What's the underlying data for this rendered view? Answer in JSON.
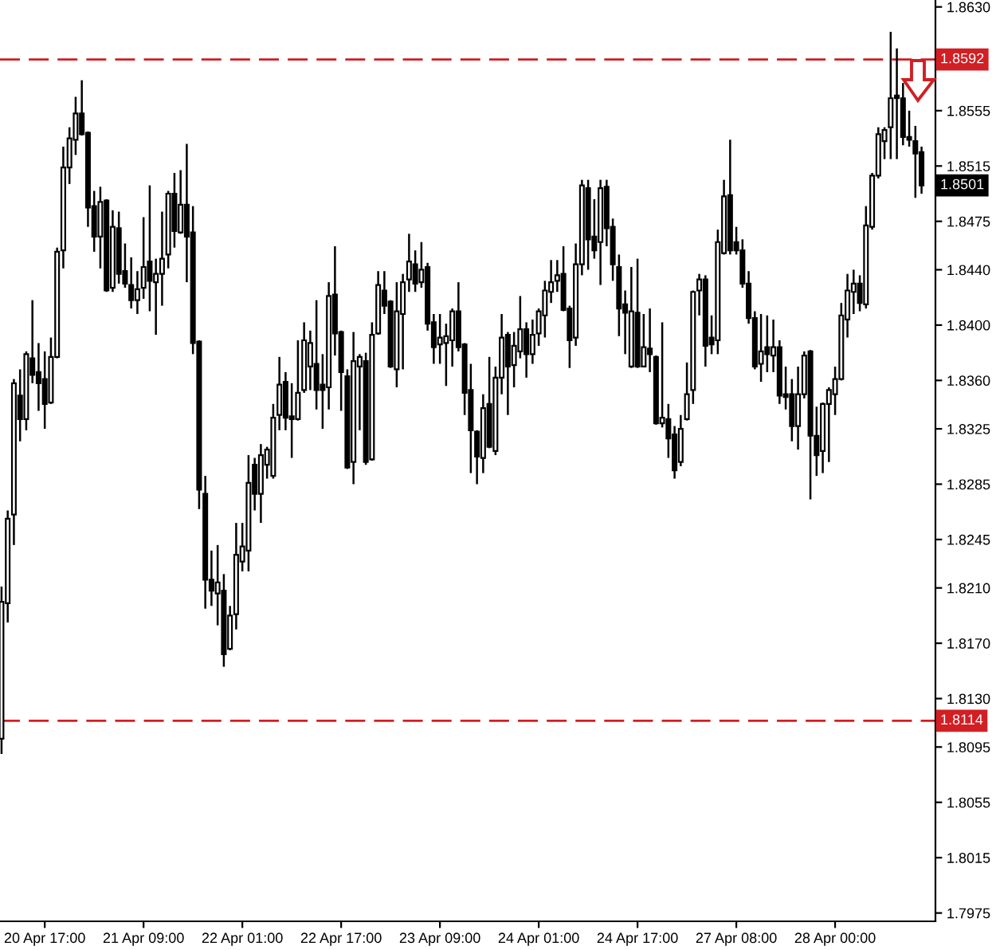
{
  "chart_data": {
    "type": "candlestick",
    "color": "#000000",
    "categories": [
      null,
      null,
      null,
      null,
      null,
      null,
      null,
      "20 Apr 17:00",
      null,
      null,
      null,
      null,
      null,
      null,
      null,
      null,
      null,
      null,
      null,
      null,
      null,
      null,
      null,
      "21 Apr 09:00",
      null,
      null,
      null,
      null,
      null,
      null,
      null,
      null,
      null,
      null,
      null,
      null,
      null,
      null,
      null,
      "22 Apr 01:00",
      null,
      null,
      null,
      null,
      null,
      null,
      null,
      null,
      null,
      null,
      null,
      null,
      null,
      null,
      null,
      "22 Apr 17:00",
      null,
      null,
      null,
      null,
      null,
      null,
      null,
      null,
      null,
      null,
      null,
      null,
      null,
      null,
      null,
      "23 Apr 09:00",
      null,
      null,
      null,
      null,
      null,
      null,
      null,
      null,
      null,
      null,
      null,
      null,
      null,
      null,
      null,
      "24 Apr 01:00",
      null,
      null,
      null,
      null,
      null,
      null,
      null,
      null,
      null,
      null,
      null,
      null,
      null,
      null,
      null,
      "24 Apr 17:00",
      null,
      null,
      null,
      null,
      null,
      null,
      null,
      null,
      null,
      null,
      null,
      null,
      null,
      null,
      null,
      "27 Apr 08:00",
      null,
      null,
      null,
      null,
      null,
      null,
      null,
      null,
      null,
      null,
      null,
      null,
      null,
      null,
      null,
      "28 Apr 00:00",
      null,
      null,
      null,
      null,
      null,
      null,
      null,
      null,
      null,
      null,
      null,
      null,
      null,
      null
    ],
    "ohlc": [
      [
        1.8101,
        1.8211,
        1.809,
        1.82
      ],
      [
        1.8199,
        1.8266,
        1.8185,
        1.826
      ],
      [
        1.8263,
        1.8361,
        1.8241,
        1.8358
      ],
      [
        1.8349,
        1.8368,
        1.8316,
        1.8332
      ],
      [
        1.8332,
        1.8381,
        1.8324,
        1.8379
      ],
      [
        1.8376,
        1.8418,
        1.8358,
        1.8364
      ],
      [
        1.8366,
        1.8387,
        1.8338,
        1.8358
      ],
      [
        1.8361,
        1.8381,
        1.8325,
        1.8343
      ],
      [
        1.8344,
        1.8391,
        1.8343,
        1.8377
      ],
      [
        1.8377,
        1.8456,
        1.8376,
        1.8453
      ],
      [
        1.8454,
        1.8529,
        1.8441,
        1.8514
      ],
      [
        1.8514,
        1.8543,
        1.8502,
        1.8535
      ],
      [
        1.8534,
        1.8565,
        1.8523,
        1.8553
      ],
      [
        1.8553,
        1.8577,
        1.8537,
        1.8538
      ],
      [
        1.8539,
        1.854,
        1.8471,
        1.8485
      ],
      [
        1.8486,
        1.8497,
        1.8453,
        1.8464
      ],
      [
        1.8464,
        1.85,
        1.8441,
        1.8489
      ],
      [
        1.849,
        1.8491,
        1.8424,
        1.8425
      ],
      [
        1.8427,
        1.8483,
        1.8424,
        1.8471
      ],
      [
        1.847,
        1.8482,
        1.843,
        1.8437
      ],
      [
        1.8439,
        1.8459,
        1.8427,
        1.843
      ],
      [
        1.8429,
        1.8449,
        1.8412,
        1.8418
      ],
      [
        1.8418,
        1.8439,
        1.8408,
        1.8426
      ],
      [
        1.8427,
        1.8478,
        1.8419,
        1.8442
      ],
      [
        1.8446,
        1.8501,
        1.841,
        1.8432
      ],
      [
        1.8431,
        1.8448,
        1.8393,
        1.8437
      ],
      [
        1.8437,
        1.8482,
        1.8414,
        1.8448
      ],
      [
        1.8451,
        1.8497,
        1.8441,
        1.8495
      ],
      [
        1.8495,
        1.851,
        1.8456,
        1.8468
      ],
      [
        1.8467,
        1.8512,
        1.8466,
        1.8487
      ],
      [
        1.8487,
        1.8531,
        1.8431,
        1.8464
      ],
      [
        1.8467,
        1.8486,
        1.8379,
        1.8387
      ],
      [
        1.8388,
        1.8389,
        1.8267,
        1.8281
      ],
      [
        1.8278,
        1.8291,
        1.8195,
        1.8216
      ],
      [
        1.8216,
        1.8237,
        1.8197,
        1.8208
      ],
      [
        1.8206,
        1.8241,
        1.8183,
        1.8214
      ],
      [
        1.8208,
        1.822,
        1.8153,
        1.8162
      ],
      [
        1.8166,
        1.8197,
        1.8165,
        1.819
      ],
      [
        1.8191,
        1.8257,
        1.818,
        1.8234
      ],
      [
        1.8229,
        1.8257,
        1.8222,
        1.824
      ],
      [
        1.8237,
        1.8306,
        1.8222,
        1.8286
      ],
      [
        1.8299,
        1.8304,
        1.8266,
        1.8278
      ],
      [
        1.8278,
        1.8314,
        1.8257,
        1.8306
      ],
      [
        1.8299,
        1.8312,
        1.8289,
        1.831
      ],
      [
        1.8291,
        1.8343,
        1.8289,
        1.8333
      ],
      [
        1.8335,
        1.8377,
        1.8324,
        1.8357
      ],
      [
        1.8359,
        1.8366,
        1.8324,
        1.8333
      ],
      [
        1.8334,
        1.8358,
        1.8304,
        1.8332
      ],
      [
        1.8332,
        1.8389,
        1.8331,
        1.8351
      ],
      [
        1.8353,
        1.8402,
        1.8351,
        1.8389
      ],
      [
        1.837,
        1.8396,
        1.8353,
        1.8387
      ],
      [
        1.8372,
        1.8418,
        1.8339,
        1.8353
      ],
      [
        1.8357,
        1.8379,
        1.8325,
        1.8353
      ],
      [
        1.8355,
        1.8431,
        1.8339,
        1.8421
      ],
      [
        1.8422,
        1.8457,
        1.8378,
        1.8394
      ],
      [
        1.8395,
        1.8396,
        1.8338,
        1.8366
      ],
      [
        1.8363,
        1.8368,
        1.8296,
        1.8297
      ],
      [
        1.8301,
        1.8395,
        1.8285,
        1.8374
      ],
      [
        1.837,
        1.8379,
        1.8324,
        1.8377
      ],
      [
        1.8374,
        1.838,
        1.8299,
        1.8301
      ],
      [
        1.8303,
        1.8402,
        1.8302,
        1.8393
      ],
      [
        1.8394,
        1.8439,
        1.8393,
        1.8429
      ],
      [
        1.8425,
        1.8439,
        1.8408,
        1.8414
      ],
      [
        1.8417,
        1.8418,
        1.8369,
        1.837
      ],
      [
        1.8368,
        1.8431,
        1.8355,
        1.841
      ],
      [
        1.8408,
        1.8437,
        1.8368,
        1.8431
      ],
      [
        1.8433,
        1.8466,
        1.8424,
        1.8446
      ],
      [
        1.8444,
        1.8454,
        1.8424,
        1.843
      ],
      [
        1.8431,
        1.846,
        1.8427,
        1.844
      ],
      [
        1.8442,
        1.8445,
        1.8396,
        1.8401
      ],
      [
        1.8402,
        1.8408,
        1.8372,
        1.8384
      ],
      [
        1.8386,
        1.8408,
        1.8372,
        1.8391
      ],
      [
        1.8387,
        1.8401,
        1.8356,
        1.8392
      ],
      [
        1.8389,
        1.8412,
        1.837,
        1.841
      ],
      [
        1.841,
        1.8431,
        1.8381,
        1.8384
      ],
      [
        1.8386,
        1.8387,
        1.8335,
        1.8351
      ],
      [
        1.8353,
        1.8372,
        1.8293,
        1.8324
      ],
      [
        1.8323,
        1.8324,
        1.8285,
        1.8305
      ],
      [
        1.8304,
        1.835,
        1.8293,
        1.834
      ],
      [
        1.8343,
        1.8377,
        1.8311,
        1.8312
      ],
      [
        1.8309,
        1.837,
        1.8306,
        1.8362
      ],
      [
        1.8362,
        1.8408,
        1.835,
        1.8391
      ],
      [
        1.8393,
        1.8395,
        1.8335,
        1.837
      ],
      [
        1.8371,
        1.8395,
        1.8355,
        1.8385
      ],
      [
        1.8381,
        1.8421,
        1.8376,
        1.8397
      ],
      [
        1.8397,
        1.8402,
        1.8362,
        1.8379
      ],
      [
        1.8379,
        1.8404,
        1.8372,
        1.8393
      ],
      [
        1.8394,
        1.8412,
        1.8385,
        1.841
      ],
      [
        1.8407,
        1.8432,
        1.8391,
        1.8425
      ],
      [
        1.8424,
        1.8447,
        1.8416,
        1.8431
      ],
      [
        1.8432,
        1.8447,
        1.8424,
        1.8436
      ],
      [
        1.8437,
        1.8457,
        1.841,
        1.8411
      ],
      [
        1.8412,
        1.8414,
        1.8369,
        1.8389
      ],
      [
        1.8391,
        1.8459,
        1.8385,
        1.8444
      ],
      [
        1.8444,
        1.8505,
        1.8436,
        1.8501
      ],
      [
        1.8499,
        1.8505,
        1.844,
        1.8462
      ],
      [
        1.8464,
        1.8491,
        1.8448,
        1.8454
      ],
      [
        1.846,
        1.8505,
        1.8429,
        1.8499
      ],
      [
        1.85,
        1.8505,
        1.8457,
        1.847
      ],
      [
        1.8471,
        1.8477,
        1.8432,
        1.8444
      ],
      [
        1.8442,
        1.8451,
        1.8392,
        1.8412
      ],
      [
        1.8415,
        1.8425,
        1.8379,
        1.8409
      ],
      [
        1.837,
        1.8442,
        1.8369,
        1.841
      ],
      [
        1.8409,
        1.8448,
        1.8369,
        1.837
      ],
      [
        1.837,
        1.8408,
        1.837,
        1.8384
      ],
      [
        1.8383,
        1.8412,
        1.8366,
        1.8379
      ],
      [
        1.8377,
        1.8378,
        1.8328,
        1.8329
      ],
      [
        1.8329,
        1.8402,
        1.8326,
        1.8333
      ],
      [
        1.8332,
        1.8343,
        1.8304,
        1.8318
      ],
      [
        1.8321,
        1.8327,
        1.8289,
        1.8295
      ],
      [
        1.8301,
        1.8335,
        1.8298,
        1.8325
      ],
      [
        1.8332,
        1.8373,
        1.8331,
        1.835
      ],
      [
        1.8353,
        1.8425,
        1.8343,
        1.8424
      ],
      [
        1.8425,
        1.8437,
        1.8407,
        1.8433
      ],
      [
        1.8433,
        1.8436,
        1.837,
        1.8385
      ],
      [
        1.8391,
        1.8407,
        1.8379,
        1.8386
      ],
      [
        1.8389,
        1.8469,
        1.8379,
        1.846
      ],
      [
        1.8452,
        1.8505,
        1.8451,
        1.8493
      ],
      [
        1.8494,
        1.8534,
        1.8451,
        1.8454
      ],
      [
        1.846,
        1.8471,
        1.8451,
        1.8454
      ],
      [
        1.8454,
        1.8462,
        1.8427,
        1.843
      ],
      [
        1.843,
        1.8439,
        1.8401,
        1.8405
      ],
      [
        1.8405,
        1.841,
        1.8368,
        1.837
      ],
      [
        1.8372,
        1.8408,
        1.8359,
        1.8381
      ],
      [
        1.8384,
        1.8407,
        1.8366,
        1.8379
      ],
      [
        1.8378,
        1.8404,
        1.8366,
        1.8384
      ],
      [
        1.8384,
        1.8389,
        1.8343,
        1.8349
      ],
      [
        1.835,
        1.837,
        1.8339,
        1.8348
      ],
      [
        1.835,
        1.8361,
        1.8316,
        1.8327
      ],
      [
        1.8327,
        1.837,
        1.831,
        1.835
      ],
      [
        1.835,
        1.8381,
        1.8347,
        1.8378
      ],
      [
        1.8381,
        1.8382,
        1.8274,
        1.832
      ],
      [
        1.832,
        1.8341,
        1.8291,
        1.8306
      ],
      [
        1.8309,
        1.8344,
        1.8293,
        1.8343
      ],
      [
        1.8343,
        1.8355,
        1.8301,
        1.8353
      ],
      [
        1.835,
        1.837,
        1.8335,
        1.8361
      ],
      [
        1.8361,
        1.8416,
        1.836,
        1.8407
      ],
      [
        1.8404,
        1.8437,
        1.8391,
        1.8425
      ],
      [
        1.8424,
        1.844,
        1.8408,
        1.843
      ],
      [
        1.843,
        1.8436,
        1.841,
        1.8416
      ],
      [
        1.8415,
        1.8486,
        1.8412,
        1.8472
      ],
      [
        1.8471,
        1.851,
        1.8469,
        1.8508
      ],
      [
        1.8508,
        1.8543,
        1.8506,
        1.8538
      ],
      [
        1.8533,
        1.8543,
        1.852,
        1.8541
      ],
      [
        1.8543,
        1.8612,
        1.852,
        1.8564
      ],
      [
        1.8566,
        1.86,
        1.852,
        1.8564
      ],
      [
        1.8564,
        1.8575,
        1.853,
        1.8536
      ],
      [
        1.8536,
        1.8555,
        1.8529,
        1.8534
      ],
      [
        1.8533,
        1.8544,
        1.8492,
        1.8524
      ],
      [
        1.8525,
        1.8529,
        1.8495,
        1.8501
      ]
    ],
    "ylim": [
      1.7969,
      1.8635
    ],
    "yticks": [
      {
        "value": 1.863,
        "label": "1.8630"
      },
      1.8555,
      1.8515,
      1.8475,
      {
        "value": 1.844,
        "label": "1.8440"
      },
      {
        "value": 1.84,
        "label": "1.8400"
      },
      {
        "value": 1.836,
        "label": "1.8360"
      },
      1.8325,
      1.8285,
      1.8245,
      {
        "value": 1.821,
        "label": "1.8210"
      },
      {
        "value": 1.817,
        "label": "1.8170"
      },
      {
        "value": 1.813,
        "label": "1.8130"
      },
      1.8095,
      1.8055,
      1.8015,
      1.7975
    ],
    "ref_lines": [
      {
        "axis": "y",
        "value": 1.8592,
        "label": "1.8592",
        "color": "#d11f24",
        "line_style": "dashed"
      },
      {
        "axis": "y",
        "value": 1.8114,
        "label": "1.8114",
        "color": "#d11f24",
        "line_style": "dashed"
      }
    ],
    "annotations": [
      {
        "text": "1.8501",
        "y": 1.8501
      }
    ]
  }
}
